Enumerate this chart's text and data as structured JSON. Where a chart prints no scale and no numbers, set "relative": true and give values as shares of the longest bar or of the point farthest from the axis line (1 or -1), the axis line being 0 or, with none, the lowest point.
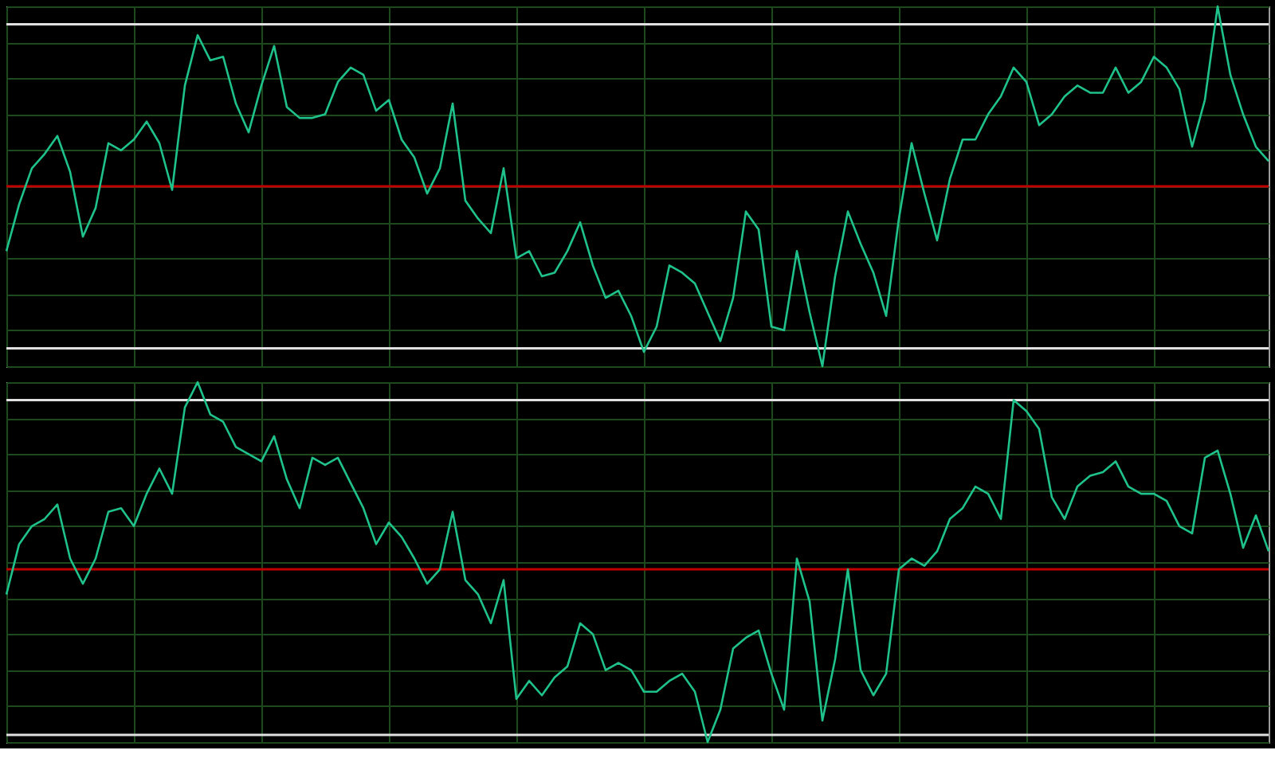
{
  "chart_data": [
    {
      "type": "line",
      "relative": true,
      "grid": true,
      "tick_labels": false,
      "categories": [
        null,
        null,
        null,
        null,
        null,
        null,
        null,
        null,
        null,
        null,
        null,
        null,
        null,
        null,
        null,
        null,
        null,
        null,
        null,
        null,
        null,
        null,
        null,
        null,
        null,
        null,
        null,
        null,
        null,
        null,
        null,
        null,
        null,
        null,
        null,
        null,
        null,
        null,
        null,
        null,
        null,
        null,
        null,
        null,
        null,
        null,
        null,
        null,
        null,
        null,
        null,
        null,
        null,
        null,
        null,
        null,
        null,
        null,
        null,
        null,
        null,
        null,
        null,
        null,
        null,
        null,
        null,
        null,
        null,
        null,
        null,
        null,
        null,
        null,
        null,
        null,
        null,
        null,
        null,
        null,
        null,
        null,
        null,
        null,
        null,
        null,
        null,
        null,
        null,
        null,
        null,
        null,
        null,
        null,
        null,
        null,
        null,
        null,
        null,
        null
      ],
      "series": [
        {
          "color": "#1fc28a",
          "values": [
            0.32,
            0.45,
            0.55,
            0.59,
            0.64,
            0.54,
            0.36,
            0.44,
            0.62,
            0.6,
            0.63,
            0.68,
            0.62,
            0.49,
            0.78,
            0.92,
            0.85,
            0.86,
            0.73,
            0.65,
            0.78,
            0.89,
            0.72,
            0.69,
            0.69,
            0.7,
            0.79,
            0.83,
            0.81,
            0.71,
            0.74,
            0.63,
            0.58,
            0.48,
            0.55,
            0.73,
            0.46,
            0.41,
            0.37,
            0.55,
            0.3,
            0.32,
            0.25,
            0.26,
            0.32,
            0.4,
            0.28,
            0.19,
            0.21,
            0.14,
            0.04,
            0.11,
            0.28,
            0.26,
            0.23,
            0.15,
            0.07,
            0.19,
            0.43,
            0.38,
            0.11,
            0.1,
            0.32,
            0.15,
            0.0,
            0.25,
            0.43,
            0.34,
            0.26,
            0.14,
            0.41,
            0.62,
            0.48,
            0.35,
            0.52,
            0.63,
            0.63,
            0.7,
            0.75,
            0.83,
            0.79,
            0.67,
            0.7,
            0.75,
            0.78,
            0.76,
            0.76,
            0.83,
            0.76,
            0.79,
            0.86,
            0.83,
            0.77,
            0.61,
            0.74,
            1.0,
            0.81,
            0.7,
            0.61,
            0.57
          ]
        }
      ],
      "ref_lines": [
        {
          "axis": "y",
          "value": 0.95,
          "color": "#e0e0e0"
        },
        {
          "axis": "y",
          "value": 0.5,
          "color": "#c00000"
        },
        {
          "axis": "y",
          "value": 0.05,
          "color": "#e0e0e0"
        }
      ]
    },
    {
      "type": "line",
      "relative": true,
      "grid": true,
      "tick_labels": false,
      "categories": [
        null,
        null,
        null,
        null,
        null,
        null,
        null,
        null,
        null,
        null,
        null,
        null,
        null,
        null,
        null,
        null,
        null,
        null,
        null,
        null,
        null,
        null,
        null,
        null,
        null,
        null,
        null,
        null,
        null,
        null,
        null,
        null,
        null,
        null,
        null,
        null,
        null,
        null,
        null,
        null,
        null,
        null,
        null,
        null,
        null,
        null,
        null,
        null,
        null,
        null,
        null,
        null,
        null,
        null,
        null,
        null,
        null,
        null,
        null,
        null,
        null,
        null,
        null,
        null,
        null,
        null,
        null,
        null,
        null,
        null,
        null,
        null,
        null,
        null,
        null,
        null,
        null,
        null,
        null,
        null,
        null,
        null,
        null,
        null,
        null,
        null,
        null,
        null,
        null,
        null,
        null,
        null,
        null,
        null,
        null,
        null,
        null,
        null,
        null,
        null
      ],
      "series": [
        {
          "color": "#1fc28a",
          "values": [
            0.41,
            0.55,
            0.6,
            0.62,
            0.66,
            0.51,
            0.44,
            0.51,
            0.64,
            0.65,
            0.6,
            0.69,
            0.76,
            0.69,
            0.93,
            1.0,
            0.91,
            0.89,
            0.82,
            0.8,
            0.78,
            0.85,
            0.73,
            0.65,
            0.79,
            0.77,
            0.79,
            0.72,
            0.65,
            0.55,
            0.61,
            0.57,
            0.51,
            0.44,
            0.48,
            0.64,
            0.45,
            0.41,
            0.33,
            0.45,
            0.12,
            0.17,
            0.13,
            0.18,
            0.21,
            0.33,
            0.3,
            0.2,
            0.22,
            0.2,
            0.14,
            0.14,
            0.17,
            0.19,
            0.14,
            0.0,
            0.09,
            0.26,
            0.29,
            0.31,
            0.19,
            0.09,
            0.51,
            0.39,
            0.06,
            0.23,
            0.48,
            0.2,
            0.13,
            0.19,
            0.48,
            0.51,
            0.49,
            0.53,
            0.62,
            0.65,
            0.71,
            0.69,
            0.62,
            0.95,
            0.92,
            0.87,
            0.68,
            0.62,
            0.71,
            0.74,
            0.75,
            0.78,
            0.71,
            0.69,
            0.69,
            0.67,
            0.6,
            0.58,
            0.79,
            0.81,
            0.69,
            0.54,
            0.63,
            0.53
          ]
        }
      ],
      "ref_lines": [
        {
          "axis": "y",
          "value": 0.95,
          "color": "#e0e0e0"
        },
        {
          "axis": "y",
          "value": 0.48,
          "color": "#c00000"
        },
        {
          "axis": "y",
          "value": 0.02,
          "color": "#e0e0e0"
        }
      ]
    }
  ]
}
